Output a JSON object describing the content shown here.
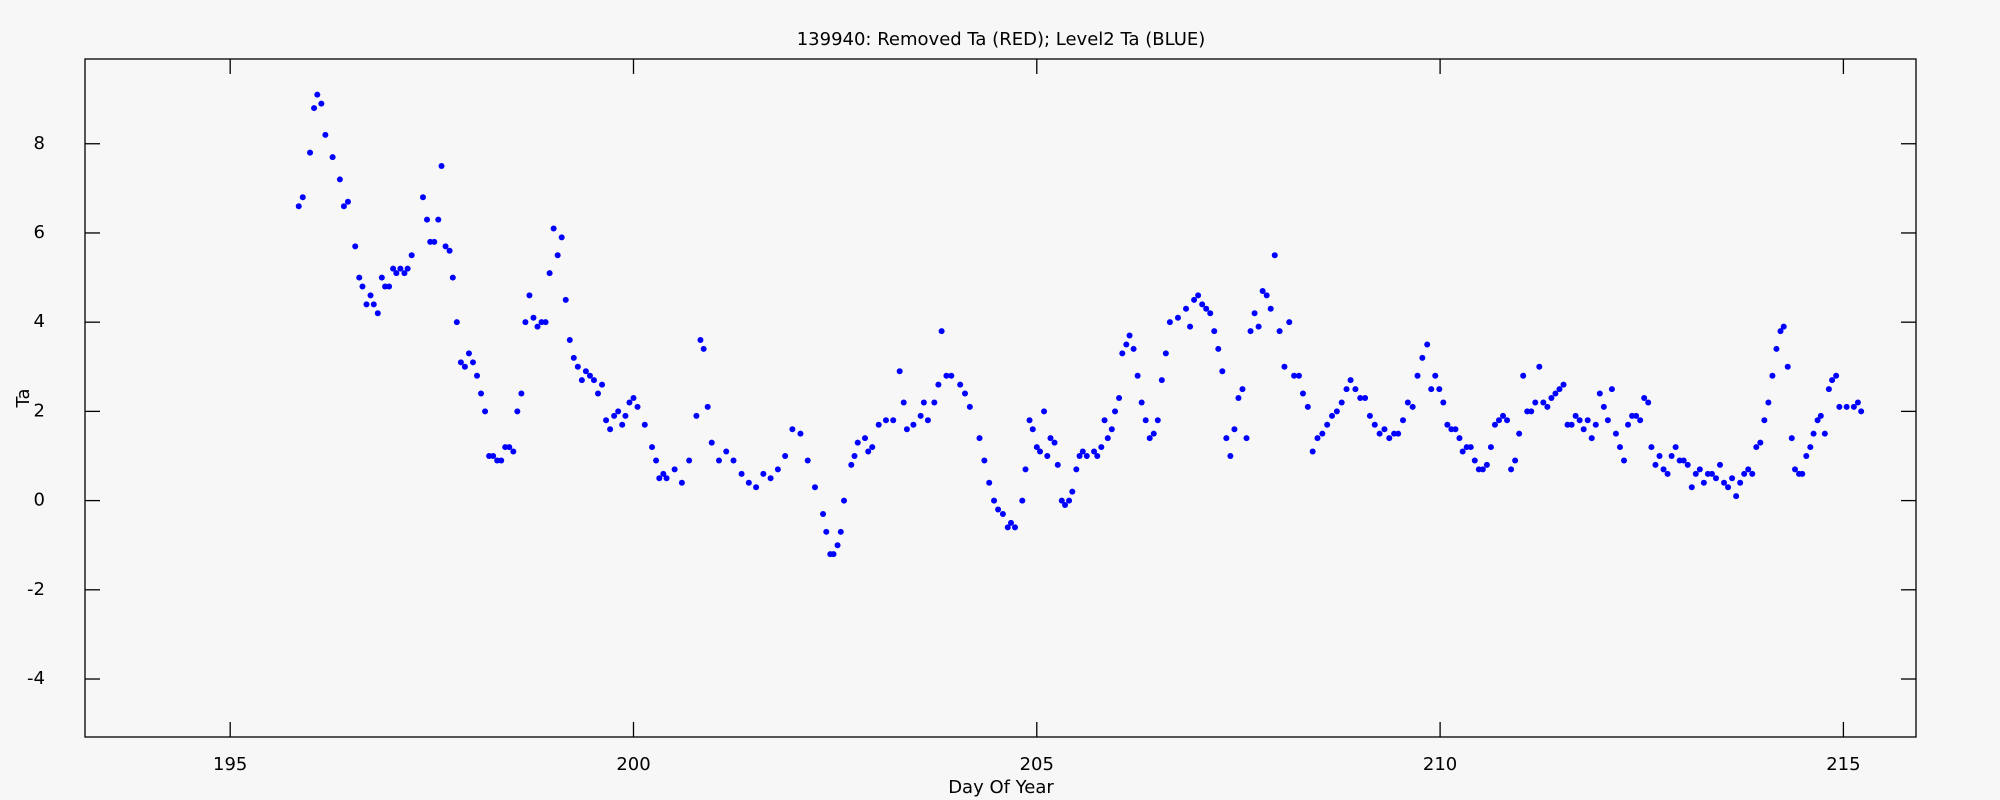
{
  "chart_data": {
    "type": "scatter",
    "title": "139940: Removed Ta (RED); Level2 Ta (BLUE)",
    "xlabel": "Day Of Year",
    "ylabel": "Ta",
    "xlim": [
      193.2,
      215.9
    ],
    "ylim": [
      -5.3,
      9.9
    ],
    "xticks": [
      195,
      200,
      205,
      210,
      215
    ],
    "yticks": [
      -4,
      -2,
      0,
      2,
      4,
      6,
      8
    ],
    "color": "#0000ff",
    "x": [
      195.85,
      195.9,
      195.99,
      196.04,
      196.08,
      196.13,
      196.18,
      196.27,
      196.36,
      196.41,
      196.46,
      196.55,
      196.6,
      196.64,
      196.69,
      196.74,
      196.78,
      196.83,
      196.88,
      196.92,
      196.97,
      197.02,
      197.06,
      197.11,
      197.16,
      197.2,
      197.25,
      197.39,
      197.44,
      197.48,
      197.53,
      197.58,
      197.62,
      197.67,
      197.72,
      197.76,
      197.81,
      197.86,
      197.91,
      197.96,
      198.01,
      198.06,
      198.11,
      198.16,
      198.21,
      198.26,
      198.31,
      198.36,
      198.41,
      198.46,
      198.51,
      198.56,
      198.61,
      198.66,
      198.71,
      198.76,
      198.81,
      198.86,
      198.91,
      198.96,
      199.01,
      199.06,
      199.11,
      199.16,
      199.21,
      199.26,
      199.31,
      199.36,
      199.41,
      199.46,
      199.51,
      199.56,
      199.61,
      199.66,
      199.71,
      199.76,
      199.81,
      199.86,
      199.9,
      199.95,
      200.0,
      200.05,
      200.14,
      200.23,
      200.28,
      200.32,
      200.37,
      200.41,
      200.51,
      200.6,
      200.69,
      200.78,
      200.83,
      200.87,
      200.92,
      200.97,
      201.06,
      201.15,
      201.24,
      201.34,
      201.43,
      201.52,
      201.61,
      201.7,
      201.79,
      201.88,
      201.97,
      202.07,
      202.16,
      202.25,
      202.35,
      202.39,
      202.44,
      202.48,
      202.53,
      202.57,
      202.61,
      202.7,
      202.74,
      202.78,
      202.87,
      202.91,
      202.96,
      203.04,
      203.13,
      203.22,
      203.3,
      203.35,
      203.39,
      203.47,
      203.56,
      203.6,
      203.65,
      203.73,
      203.78,
      203.82,
      203.88,
      203.94,
      204.05,
      204.11,
      204.17,
      204.29,
      204.35,
      204.41,
      204.47,
      204.52,
      204.58,
      204.64,
      204.68,
      204.73,
      204.82,
      204.86,
      204.91,
      204.95,
      205.0,
      205.04,
      205.09,
      205.13,
      205.17,
      205.22,
      205.26,
      205.31,
      205.35,
      205.4,
      205.44,
      205.49,
      205.53,
      205.57,
      205.62,
      205.71,
      205.75,
      205.8,
      205.84,
      205.88,
      205.93,
      205.97,
      206.02,
      206.06,
      206.11,
      206.15,
      206.2,
      206.25,
      206.3,
      206.35,
      206.4,
      206.45,
      206.5,
      206.55,
      206.6,
      206.65,
      206.75,
      206.85,
      206.9,
      206.95,
      207.0,
      207.05,
      207.1,
      207.15,
      207.2,
      207.25,
      207.3,
      207.35,
      207.4,
      207.45,
      207.5,
      207.55,
      207.6,
      207.65,
      207.7,
      207.75,
      207.8,
      207.85,
      207.9,
      207.95,
      208.01,
      208.07,
      208.13,
      208.19,
      208.25,
      208.3,
      208.36,
      208.42,
      208.48,
      208.54,
      208.6,
      208.66,
      208.72,
      208.78,
      208.84,
      208.89,
      208.95,
      209.01,
      209.07,
      209.13,
      209.19,
      209.25,
      209.31,
      209.37,
      209.43,
      209.48,
      209.54,
      209.6,
      209.66,
      209.72,
      209.78,
      209.84,
      209.89,
      209.94,
      209.99,
      210.04,
      210.09,
      210.14,
      210.19,
      210.24,
      210.28,
      210.33,
      210.38,
      210.43,
      210.48,
      210.53,
      210.58,
      210.63,
      210.68,
      210.73,
      210.78,
      210.83,
      210.88,
      210.93,
      210.98,
      211.03,
      211.08,
      211.13,
      211.18,
      211.23,
      211.28,
      211.33,
      211.38,
      211.43,
      211.48,
      211.53,
      211.58,
      211.63,
      211.68,
      211.73,
      211.78,
      211.83,
      211.88,
      211.93,
      211.98,
      212.03,
      212.08,
      212.13,
      212.18,
      212.23,
      212.28,
      212.33,
      212.38,
      212.43,
      212.48,
      212.53,
      212.58,
      212.62,
      212.67,
      212.72,
      212.77,
      212.82,
      212.87,
      212.92,
      212.97,
      213.02,
      213.07,
      213.12,
      213.17,
      213.22,
      213.27,
      213.32,
      213.37,
      213.42,
      213.47,
      213.52,
      213.57,
      213.62,
      213.67,
      213.72,
      213.77,
      213.82,
      213.87,
      213.92,
      213.97,
      214.02,
      214.07,
      214.12,
      214.17,
      214.22,
      214.26,
      214.31,
      214.36,
      214.4,
      214.45,
      214.49,
      214.54,
      214.59,
      214.63,
      214.68,
      214.72,
      214.77,
      214.82,
      214.86,
      214.91,
      214.95,
      215.04,
      215.13,
      215.18,
      215.22
    ],
    "values": [
      6.6,
      6.8,
      7.8,
      8.8,
      9.1,
      8.9,
      8.2,
      7.7,
      7.2,
      6.6,
      6.7,
      5.7,
      5.0,
      4.8,
      4.4,
      4.6,
      4.4,
      4.2,
      5.0,
      4.8,
      4.8,
      5.2,
      5.1,
      5.2,
      5.1,
      5.2,
      5.5,
      6.8,
      6.3,
      5.8,
      5.8,
      6.3,
      7.5,
      5.7,
      5.6,
      5.0,
      4.0,
      3.1,
      3.0,
      3.3,
      3.1,
      2.8,
      2.4,
      2.0,
      1.0,
      1.0,
      0.9,
      0.9,
      1.2,
      1.2,
      1.1,
      2.0,
      2.4,
      4.0,
      4.6,
      4.1,
      3.9,
      4.0,
      4.0,
      5.1,
      6.1,
      5.5,
      5.9,
      4.5,
      3.6,
      3.2,
      3.0,
      2.7,
      2.9,
      2.8,
      2.7,
      2.4,
      2.6,
      1.8,
      1.6,
      1.9,
      2.0,
      1.7,
      1.9,
      2.2,
      2.3,
      2.1,
      1.7,
      1.2,
      0.9,
      0.5,
      0.6,
      0.5,
      0.7,
      0.4,
      0.9,
      1.9,
      3.6,
      3.4,
      2.1,
      1.3,
      0.9,
      1.1,
      0.9,
      0.6,
      0.4,
      0.3,
      0.6,
      0.5,
      0.7,
      1.0,
      1.6,
      1.5,
      0.9,
      0.3,
      -0.3,
      -0.7,
      -1.2,
      -1.2,
      -1.0,
      -0.7,
      0.0,
      0.8,
      1.0,
      1.3,
      1.4,
      1.1,
      1.2,
      1.7,
      1.8,
      1.8,
      2.9,
      2.2,
      1.6,
      1.7,
      1.9,
      2.2,
      1.8,
      2.2,
      2.6,
      3.8,
      2.8,
      2.8,
      2.6,
      2.4,
      2.1,
      1.4,
      0.9,
      0.4,
      0.0,
      -0.2,
      -0.3,
      -0.6,
      -0.5,
      -0.6,
      0.0,
      0.7,
      1.8,
      1.6,
      1.2,
      1.1,
      2.0,
      1.0,
      1.4,
      1.3,
      0.8,
      0.0,
      -0.1,
      0.0,
      0.2,
      0.7,
      1.0,
      1.1,
      1.0,
      1.1,
      1.0,
      1.2,
      1.8,
      1.4,
      1.6,
      2.0,
      2.3,
      3.3,
      3.5,
      3.7,
      3.4,
      2.8,
      2.2,
      1.8,
      1.4,
      1.5,
      1.8,
      2.7,
      3.3,
      4.0,
      4.1,
      4.3,
      3.9,
      4.5,
      4.6,
      4.4,
      4.3,
      4.2,
      3.8,
      3.4,
      2.9,
      1.4,
      1.0,
      1.6,
      2.3,
      2.5,
      1.4,
      3.8,
      4.2,
      3.9,
      4.7,
      4.6,
      4.3,
      5.5,
      3.8,
      3.0,
      4.0,
      2.8,
      2.8,
      2.4,
      2.1,
      1.1,
      1.4,
      1.5,
      1.7,
      1.9,
      2.0,
      2.2,
      2.5,
      2.7,
      2.5,
      2.3,
      2.3,
      1.9,
      1.7,
      1.5,
      1.6,
      1.4,
      1.5,
      1.5,
      1.8,
      2.2,
      2.1,
      2.8,
      3.2,
      3.5,
      2.5,
      2.8,
      2.5,
      2.2,
      1.7,
      1.6,
      1.6,
      1.4,
      1.1,
      1.2,
      1.2,
      0.9,
      0.7,
      0.7,
      0.8,
      1.2,
      1.7,
      1.8,
      1.9,
      1.8,
      0.7,
      0.9,
      1.5,
      2.8,
      2.0,
      2.0,
      2.2,
      3.0,
      2.2,
      2.1,
      2.3,
      2.4,
      2.5,
      2.6,
      1.7,
      1.7,
      1.9,
      1.8,
      1.6,
      1.8,
      1.4,
      1.7,
      2.4,
      2.1,
      1.8,
      2.5,
      1.5,
      1.2,
      0.9,
      1.7,
      1.9,
      1.9,
      1.8,
      2.3,
      2.2,
      1.2,
      0.8,
      1.0,
      0.7,
      0.6,
      1.0,
      1.2,
      0.9,
      0.9,
      0.8,
      0.3,
      0.6,
      0.7,
      0.4,
      0.6,
      0.6,
      0.5,
      0.8,
      0.4,
      0.3,
      0.5,
      0.1,
      0.4,
      0.6,
      0.7,
      0.6,
      1.2,
      1.3,
      1.8,
      2.2,
      2.8,
      3.4,
      3.8,
      3.9,
      3.0,
      1.4,
      0.7,
      0.6,
      0.6,
      1.0,
      1.2,
      1.5,
      1.8,
      1.9,
      1.5,
      2.5,
      2.7,
      2.8,
      2.1,
      2.1,
      2.1,
      2.2,
      2.0
    ]
  }
}
